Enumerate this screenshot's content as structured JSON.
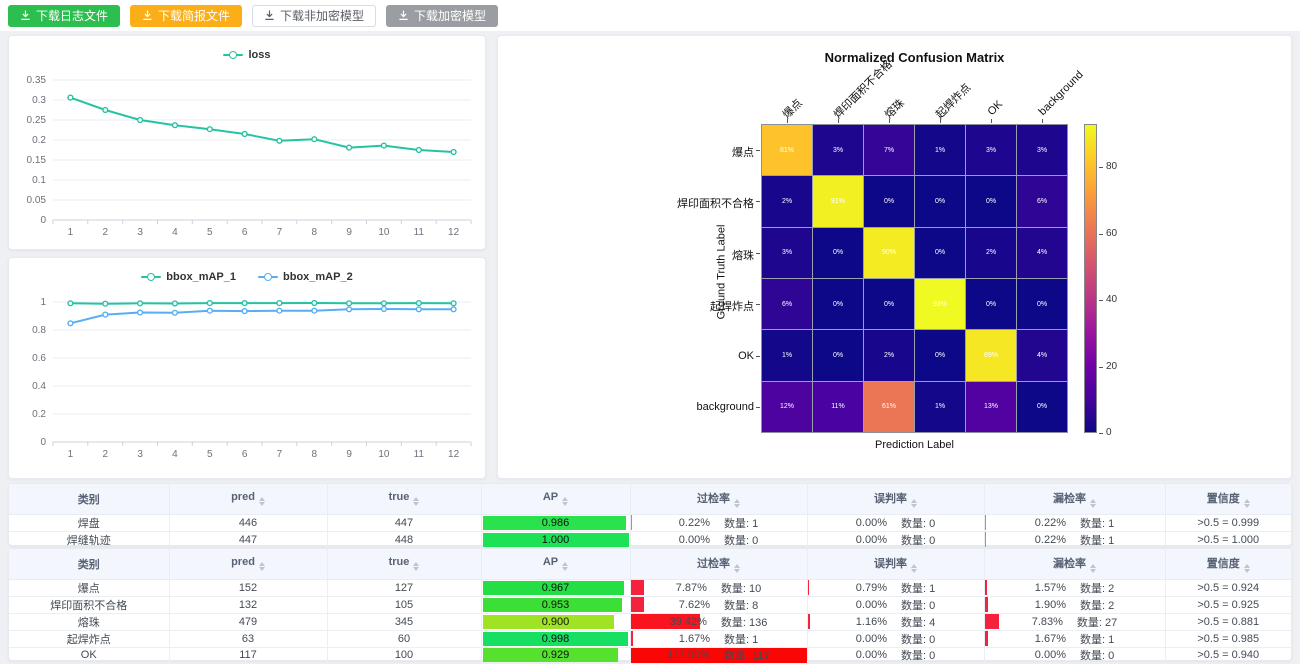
{
  "toolbar": {
    "buttons": [
      {
        "label": "下载日志文件",
        "bg": "#2cbe4e",
        "fg": "#ffffff",
        "border": "#2cbe4e"
      },
      {
        "label": "下载简报文件",
        "bg": "#fbae17",
        "fg": "#ffffff",
        "border": "#fbae17"
      },
      {
        "label": "下载非加密模型",
        "bg": "#ffffff",
        "fg": "#5a5e66",
        "border": "#d9dce3"
      },
      {
        "label": "下载加密模型",
        "bg": "#9a9da1",
        "fg": "#ffffff",
        "border": "#9a9da1"
      }
    ]
  },
  "chart_data": [
    {
      "type": "line",
      "title": "",
      "x": [
        1,
        2,
        3,
        4,
        5,
        6,
        7,
        8,
        9,
        10,
        11,
        12
      ],
      "series": [
        {
          "name": "loss",
          "color": "#25c3a3",
          "values": [
            0.306,
            0.275,
            0.25,
            0.237,
            0.227,
            0.215,
            0.198,
            0.202,
            0.181,
            0.186,
            0.175,
            0.17
          ]
        }
      ],
      "ylim": [
        0,
        0.35
      ],
      "yticks": [
        0,
        0.05,
        0.1,
        0.15,
        0.2,
        0.25,
        0.3,
        0.35
      ],
      "grid": true,
      "legend_position": "top"
    },
    {
      "type": "line",
      "title": "",
      "x": [
        1,
        2,
        3,
        4,
        5,
        6,
        7,
        8,
        9,
        10,
        11,
        12
      ],
      "series": [
        {
          "name": "bbox_mAP_1",
          "color": "#25c3a3",
          "values": [
            0.991,
            0.988,
            0.991,
            0.989,
            0.992,
            0.992,
            0.992,
            0.993,
            0.991,
            0.991,
            0.992,
            0.991
          ]
        },
        {
          "name": "bbox_mAP_2",
          "color": "#57aef5",
          "values": [
            0.848,
            0.91,
            0.925,
            0.923,
            0.938,
            0.935,
            0.938,
            0.938,
            0.948,
            0.95,
            0.948,
            0.948
          ]
        }
      ],
      "ylim": [
        0,
        1
      ],
      "yticks": [
        0,
        0.2,
        0.4,
        0.6,
        0.8,
        1
      ],
      "grid": true,
      "legend_position": "top"
    },
    {
      "type": "heatmap",
      "title": "Normalized Confusion Matrix",
      "xlabel": "Prediction Label",
      "ylabel": "Ground Truth Label",
      "labels": [
        "爆点",
        "焊印面积不合格",
        "熔珠",
        "起焊炸点",
        "OK",
        "background"
      ],
      "matrix": [
        [
          81,
          3,
          7,
          1,
          3,
          3
        ],
        [
          2,
          91,
          0,
          0,
          0,
          6
        ],
        [
          3,
          0,
          90,
          0,
          2,
          4
        ],
        [
          6,
          0,
          0,
          93,
          0,
          0
        ],
        [
          1,
          0,
          2,
          0,
          89,
          4
        ],
        [
          12,
          11,
          61,
          1,
          13,
          0
        ]
      ],
      "unit": "%",
      "vmax": 93,
      "colormap": "plasma",
      "colorbar_ticks": [
        0,
        20,
        40,
        60,
        80
      ]
    }
  ],
  "tables": [
    {
      "headers": [
        {
          "label": "类别",
          "sortable": false
        },
        {
          "label": "pred",
          "sortable": true
        },
        {
          "label": "true",
          "sortable": true
        },
        {
          "label": "AP",
          "sortable": true
        },
        {
          "label": "过检率",
          "sortable": true
        },
        {
          "label": "误判率",
          "sortable": true
        },
        {
          "label": "漏检率",
          "sortable": true
        },
        {
          "label": "置信度",
          "sortable": true
        }
      ],
      "rows": [
        {
          "class": "焊盘",
          "pred": "446",
          "true": "447",
          "ap": "0.986",
          "ap_pct": 98.6,
          "ap_color": "#2ae24d",
          "rates": [
            {
              "pct": "0.22%",
              "count": "数量: 1",
              "bar": 0.22,
              "color": "#f56c8b"
            },
            {
              "pct": "0.00%",
              "count": "数量: 0",
              "bar": 0,
              "color": "#f5223d"
            },
            {
              "pct": "0.22%",
              "count": "数量: 1",
              "bar": 0.22,
              "color": "#f56c8b"
            }
          ],
          "conf": ">0.5 = 0.999"
        },
        {
          "class": "焊缝轨迹",
          "pred": "447",
          "true": "448",
          "ap": "1.000",
          "ap_pct": 100,
          "ap_color": "#1de257",
          "rates": [
            {
              "pct": "0.00%",
              "count": "数量: 0",
              "bar": 0,
              "color": "#f5223d"
            },
            {
              "pct": "0.00%",
              "count": "数量: 0",
              "bar": 0,
              "color": "#f5223d"
            },
            {
              "pct": "0.22%",
              "count": "数量: 1",
              "bar": 0.22,
              "color": "#f56c8b"
            }
          ],
          "conf": ">0.5 = 1.000"
        }
      ]
    },
    {
      "headers": [
        {
          "label": "类别",
          "sortable": false
        },
        {
          "label": "pred",
          "sortable": true
        },
        {
          "label": "true",
          "sortable": true
        },
        {
          "label": "AP",
          "sortable": true
        },
        {
          "label": "过检率",
          "sortable": true
        },
        {
          "label": "误判率",
          "sortable": true
        },
        {
          "label": "漏检率",
          "sortable": true
        },
        {
          "label": "置信度",
          "sortable": true
        }
      ],
      "rows": [
        {
          "class": "爆点",
          "pred": "152",
          "true": "127",
          "ap": "0.967",
          "ap_pct": 96.7,
          "ap_color": "#23df43",
          "rates": [
            {
              "pct": "7.87%",
              "count": "数量: 10",
              "bar": 7.87,
              "color": "#f5223d"
            },
            {
              "pct": "0.79%",
              "count": "数量: 1",
              "bar": 0.79,
              "color": "#f5223d"
            },
            {
              "pct": "1.57%",
              "count": "数量: 2",
              "bar": 1.57,
              "color": "#f5223d"
            }
          ],
          "conf": ">0.5 = 0.924"
        },
        {
          "class": "焊印面积不合格",
          "pred": "132",
          "true": "105",
          "ap": "0.953",
          "ap_pct": 95.3,
          "ap_color": "#3bdf36",
          "rates": [
            {
              "pct": "7.62%",
              "count": "数量: 8",
              "bar": 7.62,
              "color": "#f5223d"
            },
            {
              "pct": "0.00%",
              "count": "数量: 0",
              "bar": 0,
              "color": "#f5223d"
            },
            {
              "pct": "1.90%",
              "count": "数量: 2",
              "bar": 1.9,
              "color": "#f5223d"
            }
          ],
          "conf": ">0.5 = 0.925"
        },
        {
          "class": "熔珠",
          "pred": "479",
          "true": "345",
          "ap": "0.900",
          "ap_pct": 90,
          "ap_color": "#9fe324",
          "rates": [
            {
              "pct": "39.42%",
              "count": "数量: 136",
              "bar": 39.42,
              "color": "#fa1420"
            },
            {
              "pct": "1.16%",
              "count": "数量: 4",
              "bar": 1.16,
              "color": "#f5223d"
            },
            {
              "pct": "7.83%",
              "count": "数量: 27",
              "bar": 7.83,
              "color": "#f5223d"
            }
          ],
          "conf": ">0.5 = 0.881"
        },
        {
          "class": "起焊炸点",
          "pred": "63",
          "true": "60",
          "ap": "0.998",
          "ap_pct": 99.8,
          "ap_color": "#16df62",
          "rates": [
            {
              "pct": "1.67%",
              "count": "数量: 1",
              "bar": 1.67,
              "color": "#f5223d"
            },
            {
              "pct": "0.00%",
              "count": "数量: 0",
              "bar": 0,
              "color": "#f5223d"
            },
            {
              "pct": "1.67%",
              "count": "数量: 1",
              "bar": 1.67,
              "color": "#f5223d"
            }
          ],
          "conf": ">0.5 = 0.985"
        },
        {
          "class": "OK",
          "pred": "117",
          "true": "100",
          "ap": "0.929",
          "ap_pct": 92.9,
          "ap_color": "#55e12d",
          "rates": [
            {
              "pct": "117.00%",
              "count": "数量: 117",
              "bar": 100,
              "color": "#fb0606"
            },
            {
              "pct": "0.00%",
              "count": "数量: 0",
              "bar": 0,
              "color": "#f5223d"
            },
            {
              "pct": "0.00%",
              "count": "数量: 0",
              "bar": 0,
              "color": "#f5223d"
            }
          ],
          "conf": ">0.5 = 0.940"
        }
      ]
    }
  ]
}
